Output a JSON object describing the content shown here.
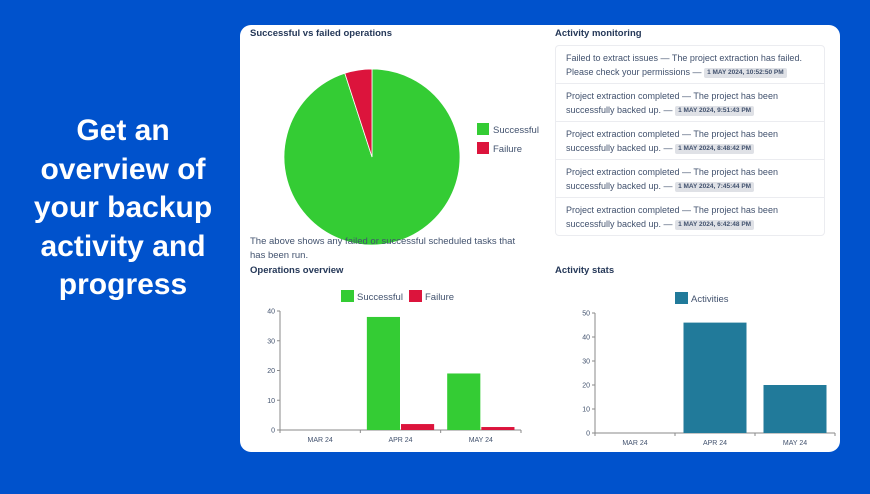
{
  "headline": "Get an overview of your backup activity and progress",
  "colors": {
    "background": "#0052CC",
    "success": "#34CC34",
    "failure": "#DC143C",
    "activities": "#217A9A"
  },
  "pie_section": {
    "title": "Successful vs failed operations",
    "description": "The above shows any failed or successful scheduled tasks that has been run."
  },
  "activity_monitoring": {
    "title": "Activity monitoring",
    "items": [
      {
        "message": "Failed to extract issues — The project extraction has failed. Please check your permissions —",
        "timestamp": "1 MAY 2024, 10:52:50 PM"
      },
      {
        "message": "Project extraction completed — The project has been successfully backed up. —",
        "timestamp": "1 MAY 2024, 9:51:43 PM"
      },
      {
        "message": "Project extraction completed — The project has been successfully backed up. —",
        "timestamp": "1 MAY 2024, 8:48:42 PM"
      },
      {
        "message": "Project extraction completed — The project has been successfully backed up. —",
        "timestamp": "1 MAY 2024, 7:45:44 PM"
      },
      {
        "message": "Project extraction completed — The project has been successfully backed up. —",
        "timestamp": "1 MAY 2024, 6:42:48 PM"
      }
    ]
  },
  "chart_data": [
    {
      "type": "pie",
      "title": "Successful vs failed operations",
      "labels": [
        "Successful",
        "Failure"
      ],
      "values": [
        57,
        3
      ],
      "legend": "right"
    },
    {
      "type": "bar",
      "title": "Operations overview",
      "categories": [
        "MAR 24",
        "APR 24",
        "MAY 24"
      ],
      "series": [
        {
          "name": "Successful",
          "values": [
            0,
            38,
            19
          ]
        },
        {
          "name": "Failure",
          "values": [
            0,
            2,
            1
          ]
        }
      ],
      "ylim": [
        0,
        40
      ],
      "yticks": [
        0,
        10,
        20,
        30,
        40
      ],
      "legend": "top"
    },
    {
      "type": "bar",
      "title": "Activity stats",
      "categories": [
        "MAR 24",
        "APR 24",
        "MAY 24"
      ],
      "series": [
        {
          "name": "Activities",
          "values": [
            0,
            46,
            20
          ]
        }
      ],
      "ylim": [
        0,
        50
      ],
      "yticks": [
        0,
        10,
        20,
        30,
        40,
        50
      ],
      "legend": "top"
    }
  ]
}
